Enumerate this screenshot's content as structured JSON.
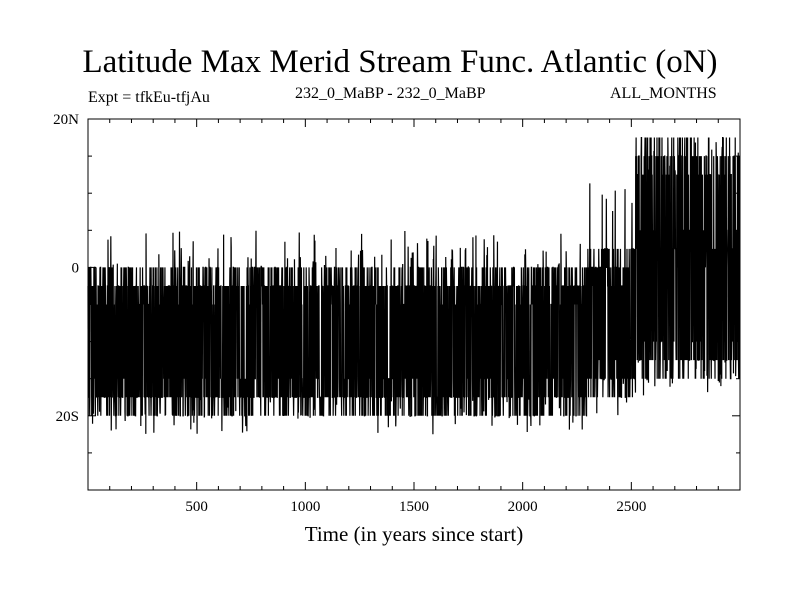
{
  "chart_data": {
    "type": "line",
    "title": "Latitude Max Merid Stream Func. Atlantic (oN)",
    "subtitle_left": "Expt = tfkEu-tfjAu",
    "subtitle_center": "232_0_MaBP - 232_0_MaBP",
    "subtitle_right": "ALL_MONTHS",
    "xlabel": "Time (in years since start)",
    "ylabel": "",
    "xlim": [
      0,
      3000
    ],
    "ylim": [
      -30,
      20
    ],
    "x_ticks": [
      500,
      1000,
      1500,
      2000,
      2500
    ],
    "x_tick_labels": [
      "500",
      "1000",
      "1500",
      "2000",
      "2500"
    ],
    "y_ticks": [
      20,
      0,
      -20
    ],
    "y_tick_labels": [
      "20N",
      "0",
      "20S"
    ],
    "grid": false,
    "legend": "none",
    "series": [
      {
        "color": "#000000",
        "segments": [
          {
            "x_start": 0,
            "x_end": 2300,
            "dominant_levels": [
              -2.5,
              -17.5
            ],
            "min": -22.5,
            "max": 5
          },
          {
            "x_start": 2300,
            "x_end": 2520,
            "dominant_levels": [
              0,
              -15
            ],
            "min": -20,
            "max": 12.5
          },
          {
            "x_start": 2520,
            "x_end": 3000,
            "dominant_levels": [
              2.5,
              15,
              -12.5
            ],
            "min": -17.5,
            "max": 17.5
          }
        ]
      }
    ]
  }
}
